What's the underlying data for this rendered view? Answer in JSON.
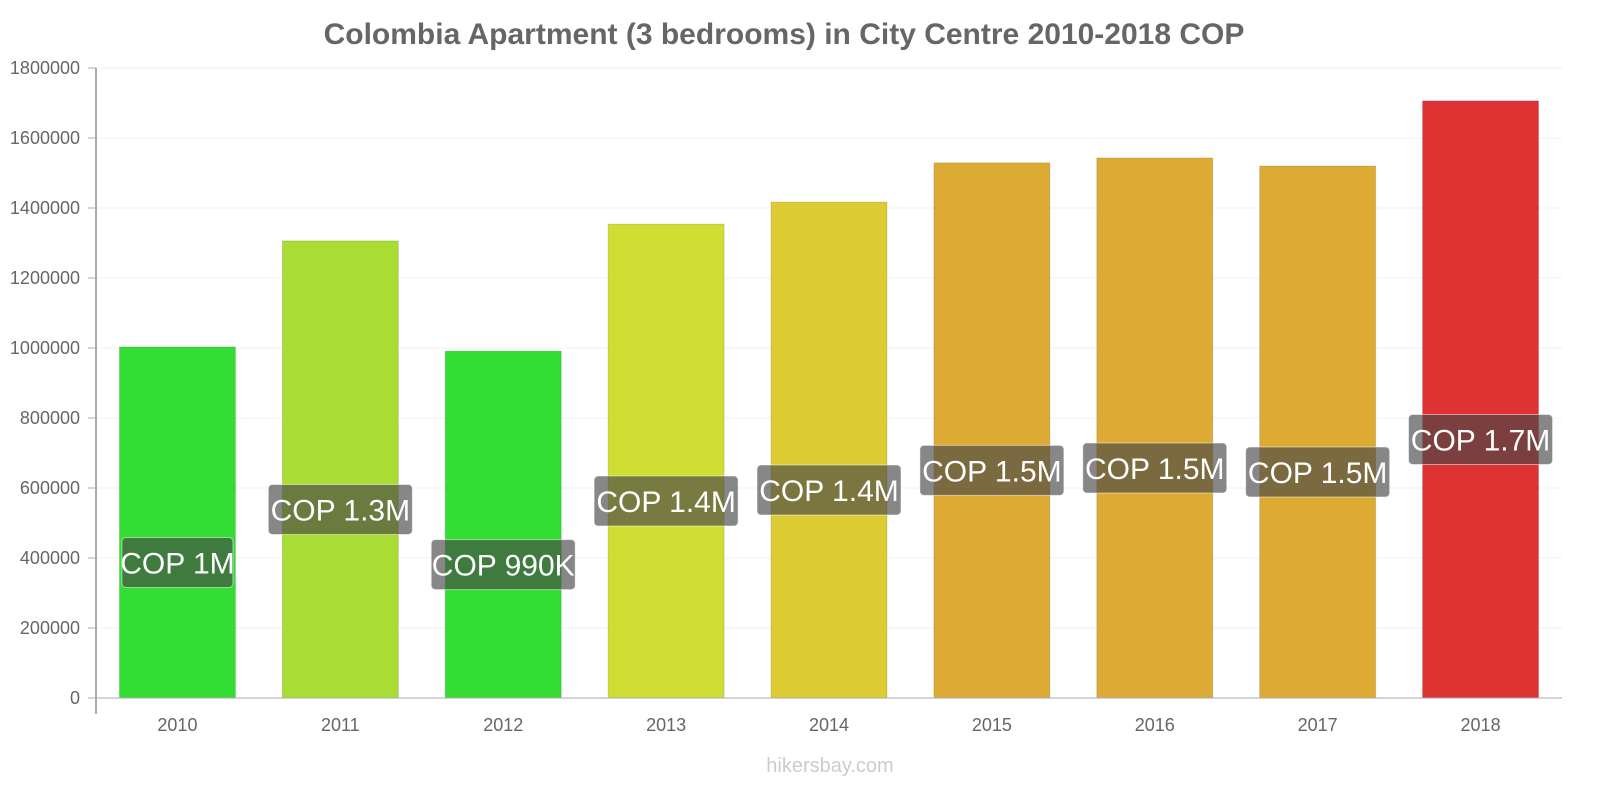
{
  "chart_data": {
    "type": "bar",
    "title": "Colombia Apartment (3 bedrooms) in City Centre 2010-2018 COP",
    "xlabel": "",
    "ylabel": "",
    "ylim": [
      0,
      1800000
    ],
    "yticks": [
      0,
      200000,
      400000,
      600000,
      800000,
      1000000,
      1200000,
      1400000,
      1600000,
      1800000
    ],
    "ytick_labels": [
      "0",
      "200000",
      "400000",
      "600000",
      "800000",
      "1000000",
      "1200000",
      "1400000",
      "1600000",
      "1800000"
    ],
    "grid": true,
    "categories": [
      "2010",
      "2011",
      "2012",
      "2013",
      "2014",
      "2015",
      "2016",
      "2017",
      "2018"
    ],
    "values": [
      1003000,
      1306000,
      991000,
      1354000,
      1417000,
      1529000,
      1543000,
      1520000,
      1706000
    ],
    "data_labels": [
      "COP 1M",
      "COP 1.3M",
      "COP 990K",
      "COP 1.4M",
      "COP 1.4M",
      "COP 1.5M",
      "COP 1.5M",
      "COP 1.5M",
      "COP 1.7M"
    ],
    "colors": [
      "#33dd33",
      "#aadd33",
      "#33dd33",
      "#d0dd33",
      "#ddcc33",
      "#ddaa33",
      "#ddaa33",
      "#ddaa33",
      "#dd3333"
    ],
    "watermark": "hikersbay.com"
  }
}
